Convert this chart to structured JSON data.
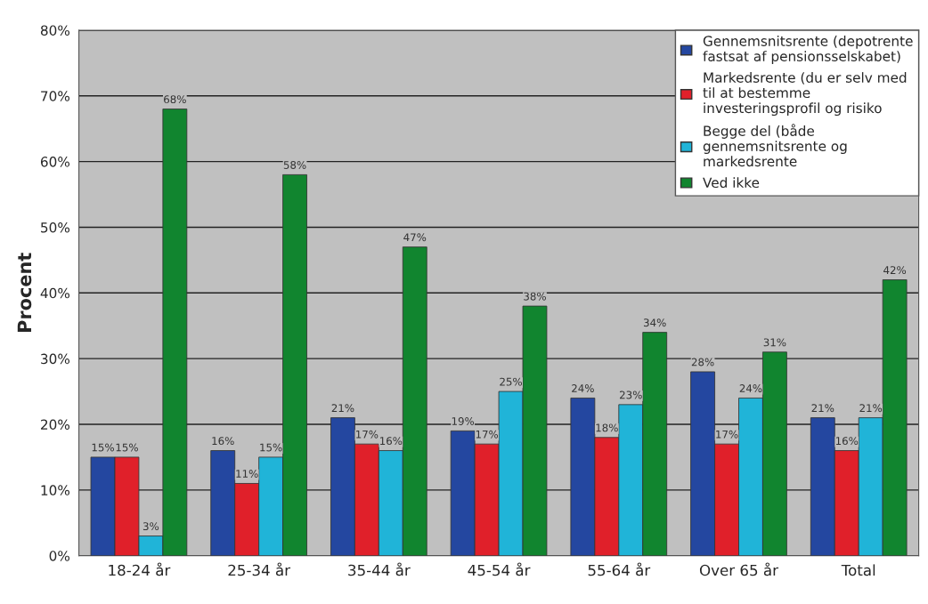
{
  "chart_data": {
    "type": "bar",
    "ylabel": "Procent",
    "categories": [
      "18-24 år",
      "25-34 år",
      "35-44 år",
      "45-54 år",
      "55-64 år",
      "Over 65 år",
      "Total"
    ],
    "series": [
      {
        "name": "Gennemsnitsrente (depotrente fastsat af pensionsselskabet)",
        "color": "#2447a0",
        "values": [
          15,
          16,
          21,
          19,
          24,
          28,
          21
        ],
        "value_labels": [
          "15%",
          "16%",
          "21%",
          "19%",
          "24%",
          "28%",
          "21%"
        ]
      },
      {
        "name": "Markedsrente (du er selv med til at bestemme investeringsprofil og risiko",
        "color": "#e0202a",
        "values": [
          15,
          11,
          17,
          17,
          18,
          17,
          16
        ],
        "value_labels": [
          "15%",
          "11%",
          "17%",
          "17%",
          "18%",
          "17%",
          "16%"
        ]
      },
      {
        "name": "Begge del (både gennemsnitsrente og markedsrente",
        "color": "#20b4d8",
        "values": [
          3,
          15,
          16,
          25,
          23,
          24,
          21
        ],
        "value_labels": [
          "3%",
          "15%",
          "16%",
          "25%",
          "23%",
          "24%",
          "21%"
        ]
      },
      {
        "name": "Ved ikke",
        "color": "#11852f",
        "values": [
          68,
          58,
          47,
          38,
          34,
          31,
          42
        ],
        "value_labels": [
          "68%",
          "58%",
          "47%",
          "38%",
          "34%",
          "31%",
          "42%"
        ]
      }
    ],
    "ylim": [
      0,
      80
    ],
    "yticks": [
      {
        "value": 0,
        "label": "0%"
      },
      {
        "value": 10,
        "label": "10%"
      },
      {
        "value": 20,
        "label": "20%"
      },
      {
        "value": 30,
        "label": "30%"
      },
      {
        "value": 40,
        "label": "40%"
      },
      {
        "value": 50,
        "label": "50%"
      },
      {
        "value": 60,
        "label": "60%"
      },
      {
        "value": 70,
        "label": "70%"
      },
      {
        "value": 80,
        "label": "80%"
      }
    ],
    "grid": "y",
    "legend": "top right"
  }
}
